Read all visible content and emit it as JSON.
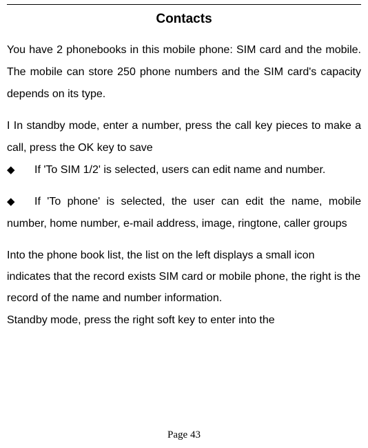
{
  "title": "Contacts",
  "p1": "You have 2 phonebooks in this mobile phone: SIM card and the mobile. The mobile can store 250 phone numbers and the SIM card's capacity depends on its type.",
  "p2_lead": "I In standby mode, enter a number, press the call key pieces to make a call, press the OK key to save",
  "bullet1_marker": "◆",
  "bullet1_text": "If 'To SIM 1/2' is selected, users can edit name and number.",
  "bullet2_marker": "◆",
  "bullet2_text": "If 'To phone' is selected, the user can edit the name, mobile number, home number, e-mail address, image, ringtone, caller groups",
  "p3": "Into the phone book list, the list on the left displays a small icon indicates that the record exists SIM card or mobile phone, the right is the record of the name and number information.",
  "p4": "Standby mode, press the right soft key to enter into the",
  "page_label": "Page 43"
}
